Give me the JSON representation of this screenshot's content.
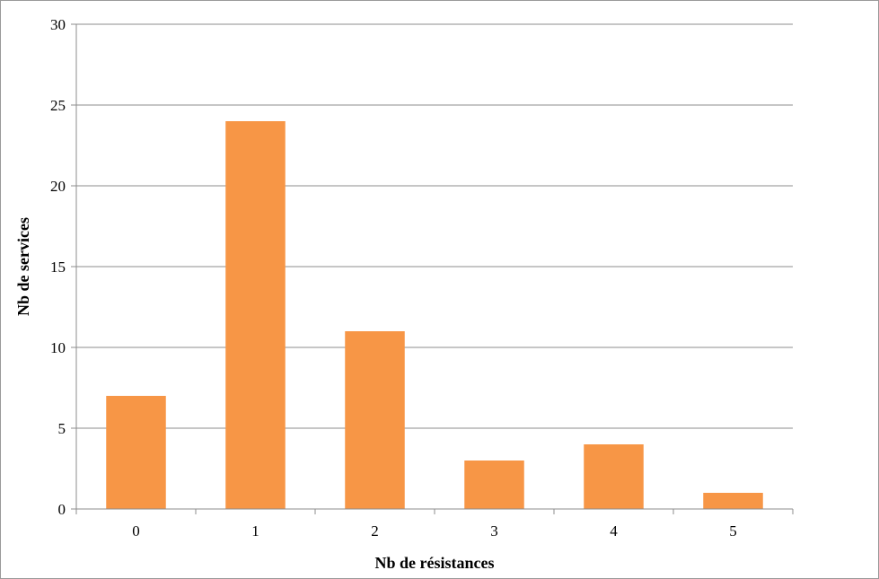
{
  "chart_data": {
    "type": "bar",
    "categories": [
      "0",
      "1",
      "2",
      "3",
      "4",
      "5"
    ],
    "values": [
      7,
      24,
      11,
      3,
      4,
      1
    ],
    "title": "",
    "xlabel": "Nb de résistances",
    "ylabel": "Nb de services",
    "ylim": [
      0,
      30
    ],
    "yticks": [
      "0",
      "5",
      "10",
      "15",
      "20",
      "25",
      "30"
    ],
    "grid": true,
    "legend": "none",
    "bar_color": "#F79646",
    "grid_color": "#8c8c8c"
  }
}
